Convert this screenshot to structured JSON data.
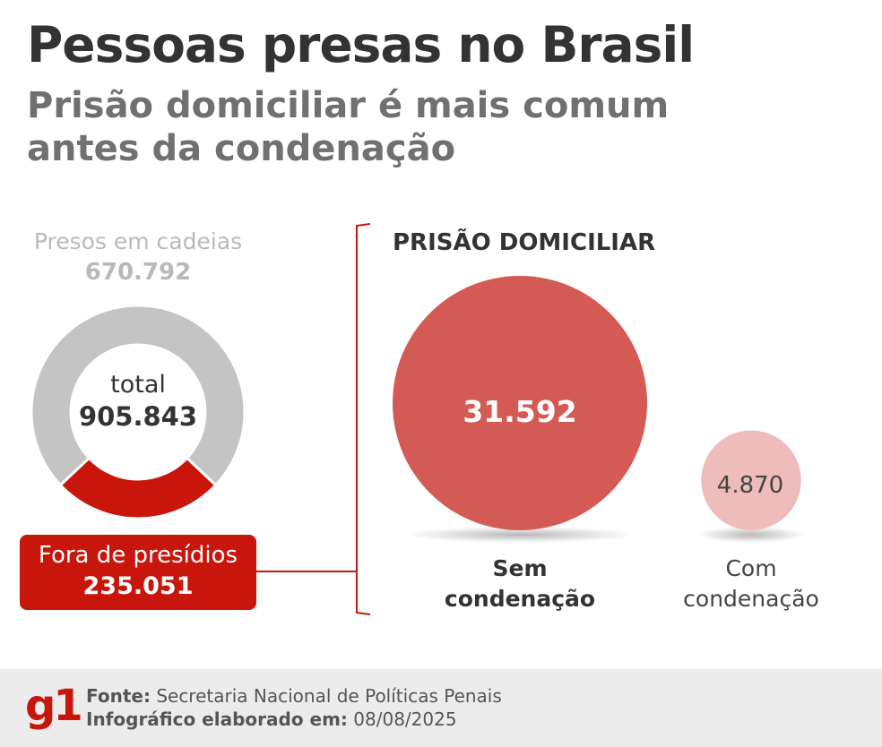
{
  "header": {
    "title": "Pessoas presas no Brasil",
    "subtitle": "Prisão domiciliar é mais comum antes da condenação"
  },
  "donut": {
    "presos_label": "Presos em cadeias",
    "presos_value": "670.792",
    "total_label": "total",
    "total_value": "905.843",
    "fora_label": "Fora de presídios",
    "fora_value": "235.051"
  },
  "bubbles": {
    "title": "PRISÃO DOMICILIAR",
    "sem_value": "31.592",
    "sem_label_1": "Sem",
    "sem_label_2": "condenação",
    "com_value": "4.870",
    "com_label_1": "Com",
    "com_label_2": "condenação"
  },
  "footer": {
    "logo": "g1",
    "source_label": "Fonte:",
    "source_value": "Secretaria Nacional de Políticas Penais",
    "date_label": "Infográfico elaborado em:",
    "date_value": "08/08/2025"
  },
  "colors": {
    "red_dark": "#c8160d",
    "red_bubble": "#d45a55",
    "pink_bubble": "#efbcbc",
    "gray_ring": "#c4c4c4",
    "gray_text": "#b9b9b9"
  },
  "chart_data": [
    {
      "type": "pie",
      "categories": [
        "Presos em cadeias",
        "Fora de presídios"
      ],
      "values": [
        670792,
        235051
      ],
      "total": 905843,
      "colors": [
        "#c4c4c4",
        "#c8160d"
      ]
    },
    {
      "type": "bubble",
      "title": "PRISÃO DOMICILIAR",
      "categories": [
        "Sem condenação",
        "Com condenação"
      ],
      "values": [
        31592,
        4870
      ],
      "colors": [
        "#d45a55",
        "#efbcbc"
      ]
    }
  ]
}
